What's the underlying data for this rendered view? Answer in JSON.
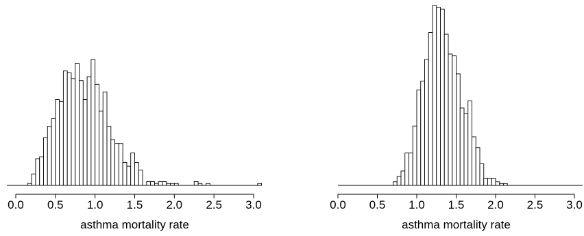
{
  "chart_data": [
    {
      "type": "bar",
      "xlabel": "asthma mortality rate",
      "ylabel": "",
      "xlim": [
        0.0,
        3.15
      ],
      "xticks": [
        "0.0",
        "0.5",
        "1.0",
        "1.5",
        "2.0",
        "2.5",
        "3.0"
      ],
      "bin_width": 0.05,
      "bin_starts": [
        0.15,
        0.2,
        0.25,
        0.3,
        0.35,
        0.4,
        0.45,
        0.5,
        0.55,
        0.6,
        0.65,
        0.7,
        0.75,
        0.8,
        0.85,
        0.9,
        0.95,
        1.0,
        1.05,
        1.1,
        1.15,
        1.2,
        1.25,
        1.3,
        1.35,
        1.4,
        1.45,
        1.5,
        1.55,
        1.6,
        1.65,
        1.7,
        1.75,
        1.8,
        1.85,
        1.9,
        1.95,
        2.0,
        2.05,
        2.1,
        2.15,
        2.2,
        2.25,
        2.3,
        2.35,
        2.4,
        2.45,
        2.5,
        2.55,
        2.6,
        2.65,
        2.7,
        2.75,
        2.8,
        2.85,
        2.9,
        2.95,
        3.0,
        3.05,
        3.1
      ],
      "counts": [
        1,
        6,
        14,
        15,
        25,
        31,
        35,
        45,
        44,
        60,
        59,
        56,
        64,
        55,
        45,
        57,
        66,
        53,
        39,
        49,
        31,
        24,
        22,
        22,
        12,
        10,
        17,
        12,
        8,
        0,
        2,
        2,
        1,
        2,
        2,
        1,
        1,
        1,
        0,
        0,
        0,
        0,
        2,
        1,
        0,
        1,
        0,
        0,
        0,
        0,
        0,
        0,
        0,
        0,
        0,
        0,
        0,
        0,
        1,
        0
      ]
    },
    {
      "type": "bar",
      "xlabel": "asthma mortality rate",
      "ylabel": "",
      "xlim": [
        0.0,
        3.15
      ],
      "xticks": [
        "0.0",
        "0.5",
        "1.0",
        "1.5",
        "2.0",
        "2.5",
        "3.0"
      ],
      "bin_width": 0.05,
      "bin_starts": [
        0.7,
        0.75,
        0.8,
        0.85,
        0.9,
        0.95,
        1.0,
        1.05,
        1.1,
        1.15,
        1.2,
        1.25,
        1.3,
        1.35,
        1.4,
        1.45,
        1.5,
        1.55,
        1.6,
        1.65,
        1.7,
        1.75,
        1.8,
        1.85,
        1.9,
        1.95,
        2.0,
        2.05,
        2.1,
        2.15
      ],
      "counts": [
        2,
        5,
        8,
        18,
        18,
        33,
        53,
        58,
        70,
        85,
        100,
        99,
        98,
        84,
        73,
        72,
        62,
        43,
        40,
        47,
        27,
        21,
        12,
        4,
        4,
        4,
        2,
        1,
        1,
        0
      ]
    }
  ]
}
